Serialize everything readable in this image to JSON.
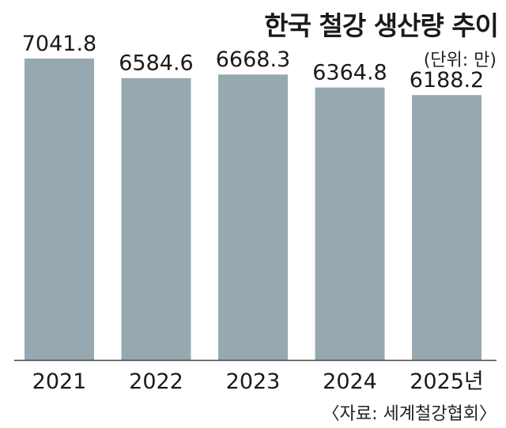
{
  "title": "한국 철강 생산량 추이",
  "unit": "(단위: 만)",
  "source": "〈자료: 세계철강협회〉",
  "colors": {
    "bar": "#97a8b1",
    "axis": "#444444",
    "text": "#1a1a1a"
  },
  "chart_data": {
    "type": "bar",
    "categories": [
      "2021",
      "2022",
      "2023",
      "2024",
      "2025년"
    ],
    "values": [
      7041.8,
      6584.6,
      6668.3,
      6364.8,
      6188.2
    ],
    "value_labels": [
      "7041.8",
      "6584.6",
      "6668.3",
      "6364.8",
      "6188.2"
    ],
    "title": "한국 철강 생산량 추이",
    "xlabel": "",
    "ylabel": "",
    "ylim": [
      0,
      7041.8
    ],
    "grid": false,
    "legend": "none"
  }
}
